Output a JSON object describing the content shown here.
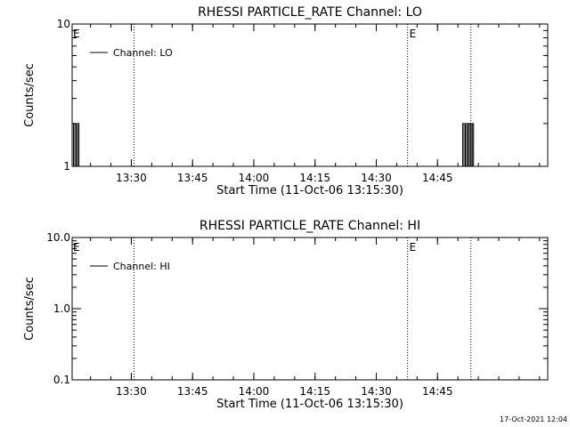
{
  "timestamp": "17-Oct-2021 12:04",
  "chart_data": [
    {
      "type": "line",
      "title": "RHESSI PARTICLE_RATE Channel: LO",
      "xlabel": "Start Time (11-Oct-06 13:15:30)",
      "ylabel": "Counts/sec",
      "y_scale": "log",
      "xlim": [
        "13:15:30",
        "15:12:00"
      ],
      "ylim": [
        1,
        10
      ],
      "x_ticks": [
        "13:30",
        "13:45",
        "14:00",
        "14:15",
        "14:30",
        "14:45"
      ],
      "y_ticks": [
        "1",
        "10"
      ],
      "legend": {
        "entries": [
          "Channel: LO"
        ],
        "position": "top-left"
      },
      "event_lines": [
        {
          "time": "13:30:40",
          "label": ""
        },
        {
          "time": "14:37:40",
          "label": "E"
        },
        {
          "time": "14:53:10",
          "label": ""
        }
      ],
      "start_label": "E",
      "series": [
        {
          "name": "Channel: LO",
          "points": [
            [
              "13:15:30",
              2
            ],
            [
              "13:15:50",
              1
            ],
            [
              "13:16:10",
              2
            ],
            [
              "13:16:30",
              1
            ],
            [
              "13:16:50",
              2
            ],
            [
              "13:17:10",
              1
            ],
            [
              "14:51:00",
              1
            ],
            [
              "14:51:10",
              2
            ],
            [
              "14:51:30",
              1
            ],
            [
              "14:51:50",
              2
            ],
            [
              "14:52:10",
              1
            ],
            [
              "14:52:30",
              2
            ],
            [
              "14:52:50",
              2
            ],
            [
              "14:53:10",
              1
            ],
            [
              "14:53:30",
              2
            ],
            [
              "14:53:50",
              1
            ]
          ]
        }
      ]
    },
    {
      "type": "line",
      "title": "RHESSI PARTICLE_RATE Channel: HI",
      "xlabel": "Start Time (11-Oct-06 13:15:30)",
      "ylabel": "Counts/sec",
      "y_scale": "log",
      "xlim": [
        "13:15:30",
        "15:12:00"
      ],
      "ylim": [
        0.1,
        10
      ],
      "x_ticks": [
        "13:30",
        "13:45",
        "14:00",
        "14:15",
        "14:30",
        "14:45"
      ],
      "y_ticks": [
        "0.1",
        "1.0",
        "10.0"
      ],
      "legend": {
        "entries": [
          "Channel: HI"
        ],
        "position": "top-left"
      },
      "event_lines": [
        {
          "time": "13:30:40",
          "label": ""
        },
        {
          "time": "14:37:40",
          "label": "E"
        },
        {
          "time": "14:53:10",
          "label": ""
        }
      ],
      "start_label": "E",
      "series": [
        {
          "name": "Channel: HI",
          "points": []
        }
      ]
    }
  ]
}
